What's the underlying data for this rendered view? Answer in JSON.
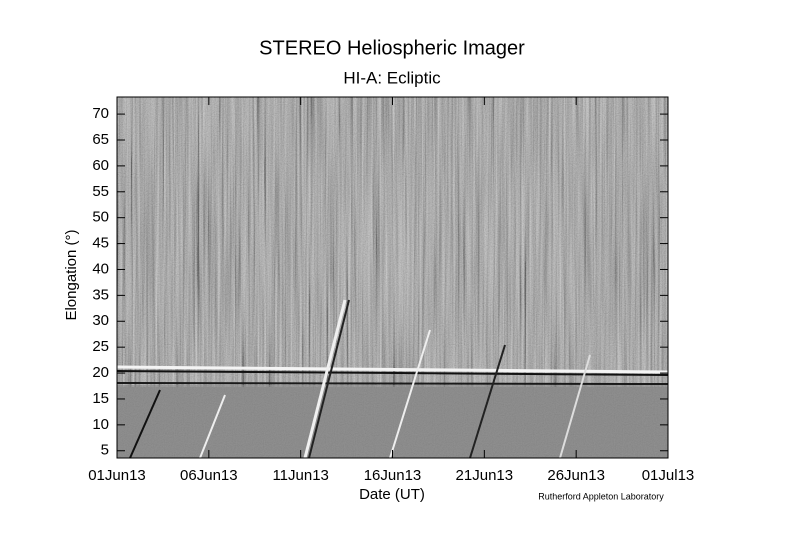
{
  "chart_data": {
    "type": "image",
    "title": "STEREO Heliospheric Imager",
    "subtitle": "HI-A: Ecliptic",
    "x_label": "Date (UT)",
    "y_label": "Elongation (°)",
    "credit": "Rutherford Appleton Laboratory",
    "xlim": [
      "01Jun13",
      "01Jul13"
    ],
    "xticks": [
      "01Jun13",
      "06Jun13",
      "11Jun13",
      "16Jun13",
      "21Jun13",
      "26Jun13",
      "01Jul13"
    ],
    "ylim": [
      3.6,
      73.3
    ],
    "yticks": [
      5,
      10,
      15,
      20,
      25,
      30,
      35,
      40,
      45,
      50,
      55,
      60,
      65,
      70
    ]
  }
}
